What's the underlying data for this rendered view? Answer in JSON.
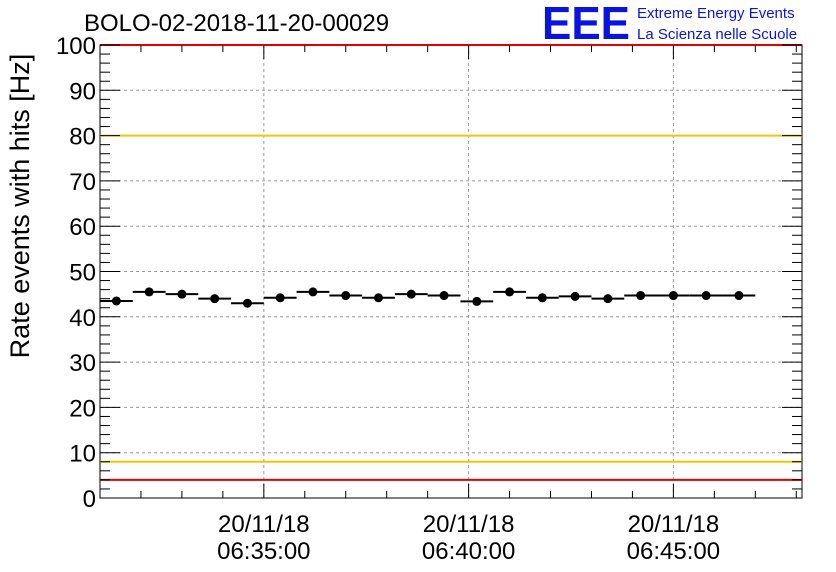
{
  "chart_data": {
    "type": "scatter",
    "title": "BOLO-02-2018-11-20-00029",
    "ylabel": "Rate events with hits [Hz]",
    "xlabel": "",
    "ylim": [
      0,
      100
    ],
    "yticks": [
      "0",
      "10",
      "20",
      "30",
      "40",
      "50",
      "60",
      "70",
      "80",
      "90",
      "100"
    ],
    "x_time_range_minutes": [
      0.0,
      17.14
    ],
    "xticks": [
      {
        "t_min": 4.0,
        "date": "20/11/18",
        "time": "06:35:00"
      },
      {
        "t_min": 9.0,
        "date": "20/11/18",
        "time": "06:40:00"
      },
      {
        "t_min": 14.0,
        "date": "20/11/18",
        "time": "06:45:00"
      }
    ],
    "bin_width_min": 0.8,
    "series": [
      {
        "name": "rate",
        "x_min": [
          0.4,
          1.2,
          2.0,
          2.8,
          3.6,
          4.4,
          5.2,
          6.0,
          6.8,
          7.6,
          8.4,
          9.2,
          10.0,
          10.8,
          11.6,
          12.4,
          13.2,
          14.0,
          14.8,
          15.6
        ],
        "values": [
          43.5,
          45.5,
          45.0,
          44.0,
          43.0,
          44.2,
          45.5,
          44.7,
          44.2,
          45.0,
          44.7,
          43.4,
          45.5,
          44.2,
          44.5,
          44.0,
          44.7,
          44.7,
          44.7,
          44.7
        ]
      }
    ],
    "reference_lines": [
      {
        "name": "upper-red",
        "y": 100,
        "color": "#e60000"
      },
      {
        "name": "upper-yellow",
        "y": 80,
        "color": "#f0c800"
      },
      {
        "name": "lower-yellow",
        "y": 8,
        "color": "#f0c800"
      },
      {
        "name": "lower-red",
        "y": 4,
        "color": "#e60000"
      }
    ]
  },
  "logo": {
    "mark": "EEE",
    "line1": "Extreme Energy Events",
    "line2": "La Scienza nelle Scuole",
    "color": "#0a14e0"
  }
}
